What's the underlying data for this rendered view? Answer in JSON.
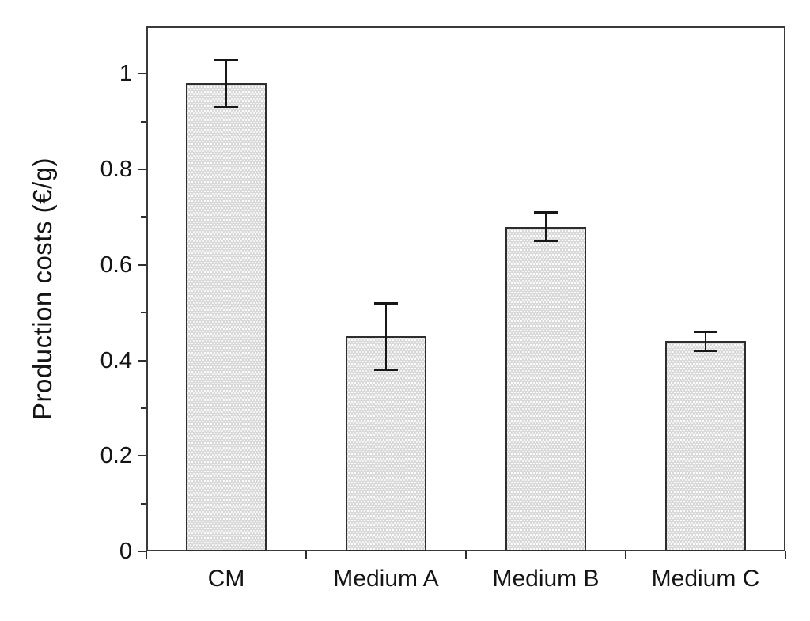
{
  "chart_data": {
    "type": "bar",
    "title": "",
    "xlabel": "",
    "ylabel": "Production costs (€/g)",
    "categories": [
      "CM",
      "Medium A",
      "Medium B",
      "Medium C"
    ],
    "values": [
      0.98,
      0.45,
      0.68,
      0.44
    ],
    "errors": [
      0.05,
      0.07,
      0.03,
      0.02
    ],
    "ylim": [
      0,
      1.1
    ],
    "yticks": [
      0,
      0.2,
      0.4,
      0.6,
      0.8,
      1.0
    ],
    "ytick_labels": [
      "0",
      "0.2",
      "0.4",
      "0.6",
      "0.8",
      "1"
    ],
    "minor_yticks": [
      0.1,
      0.3,
      0.5,
      0.7,
      0.9
    ],
    "grid": false,
    "legend": false,
    "frame_box": true,
    "colors": {
      "bar_fill": "#d5d5d5",
      "bar_border": "#2e2e2e",
      "error_bar": "#171717",
      "axis": "#3a3a3a",
      "text": "#141414",
      "background": "#ffffff"
    }
  }
}
